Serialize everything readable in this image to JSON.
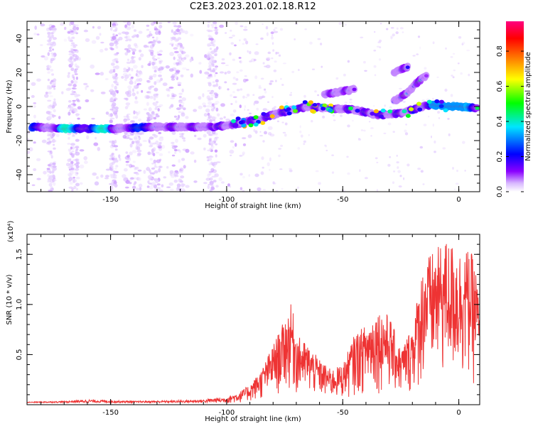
{
  "title": "C2E3.2023.201.02.18.R12",
  "colors": {
    "snr_line": "#ee3333",
    "spectro_dot": "#b98cf2",
    "frame": "#000000"
  },
  "chart_data": [
    {
      "type": "heatmap",
      "title": "",
      "xlabel": "Height of straight line (km)",
      "ylabel": "Frequency (Hz)",
      "xlim": [
        -186,
        9
      ],
      "ylim": [
        -50,
        50
      ],
      "xticks": [
        "-150",
        "-100",
        "-50",
        "0"
      ],
      "yticks": [
        "-40",
        "-20",
        "0",
        "20",
        "40"
      ],
      "grid": false,
      "colorbar": {
        "label": "Normalized spectral amplitude",
        "range": [
          0.0,
          0.97
        ],
        "ticks": [
          "0.0",
          "0.2",
          "0.4",
          "0.6",
          "0.8"
        ],
        "colormap": [
          "#ffffff",
          "#d8b8ff",
          "#8a00ff",
          "#0000ff",
          "#00e5ff",
          "#00ff00",
          "#ffff00",
          "#ff7f00",
          "#ff0000",
          "#ff007f"
        ]
      },
      "ridges": [
        {
          "x": [
            -184,
            -170,
            -150,
            -130,
            -115,
            -105,
            -95,
            -85,
            -75,
            -65,
            -55,
            -45,
            -35,
            -25,
            -18,
            -12,
            -5,
            0,
            8
          ],
          "y": [
            -12,
            -13,
            -13,
            -12,
            -12,
            -12,
            -10,
            -7,
            -3,
            0,
            -1,
            -2,
            -5,
            -4,
            -1,
            1,
            0,
            0,
            -1
          ]
        },
        {
          "x": [
            -58,
            -50,
            -45
          ],
          "y": [
            7,
            9,
            10
          ]
        },
        {
          "x": [
            -28,
            -22,
            -18,
            -14
          ],
          "y": [
            3,
            8,
            14,
            18
          ]
        },
        {
          "x": [
            -28,
            -22
          ],
          "y": [
            20,
            23
          ]
        }
      ]
    },
    {
      "type": "line",
      "title": "",
      "xlabel": "Height of straight line (km)",
      "ylabel": "SNR (10 * v/v)",
      "multiplier": "(x10⁴)",
      "xlim": [
        -186,
        9
      ],
      "ylim": [
        0,
        1.7
      ],
      "xticks": [
        "-150",
        "-100",
        "-50",
        "0"
      ],
      "yticks": [
        "0.5",
        "1.0",
        "1.5"
      ],
      "grid": false,
      "envelope": {
        "x": [
          -186,
          -170,
          -160,
          -140,
          -120,
          -110,
          -105,
          -100,
          -95,
          -90,
          -85,
          -80,
          -75,
          -72,
          -70,
          -65,
          -60,
          -55,
          -50,
          -45,
          -40,
          -35,
          -30,
          -25,
          -20,
          -15,
          -10,
          -5,
          0,
          5,
          8,
          9
        ],
        "y": [
          0.02,
          0.03,
          0.05,
          0.03,
          0.04,
          0.05,
          0.07,
          0.08,
          0.12,
          0.2,
          0.35,
          0.6,
          0.85,
          1.02,
          0.7,
          0.6,
          0.45,
          0.35,
          0.4,
          0.7,
          0.8,
          0.95,
          0.9,
          0.55,
          0.8,
          1.45,
          1.55,
          1.65,
          1.55,
          1.55,
          1.3,
          0.8
        ]
      }
    }
  ]
}
